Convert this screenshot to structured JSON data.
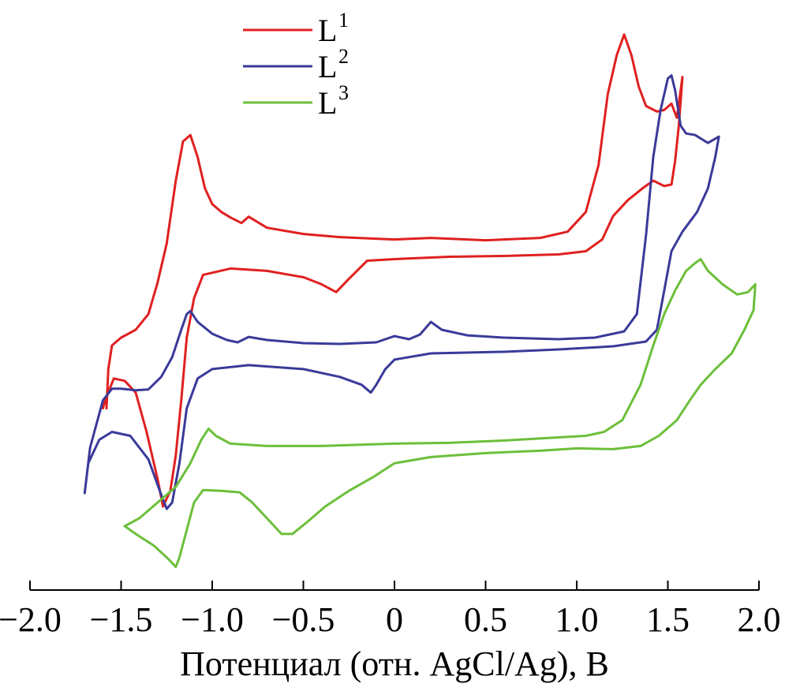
{
  "chart_data": {
    "type": "line",
    "title": "",
    "xlabel": "Потенциал (отн. AgCl/Ag), В",
    "ylabel": "",
    "xlim": [
      -2.0,
      2.0
    ],
    "x_ticks": [
      -2.0,
      -1.5,
      -1.0,
      -0.5,
      0,
      0.5,
      1.0,
      1.5,
      2.0
    ],
    "x_tick_labels": [
      "−2.0",
      "−1.5",
      "−1.0",
      "−0.5",
      "0",
      "0.5",
      "1.0",
      "1.5",
      "2.0"
    ],
    "y_axis_visible": false,
    "ylim": [
      0,
      880
    ],
    "grid": false,
    "legend_position": "top-left",
    "series": [
      {
        "name": "L",
        "sup": "1",
        "color": "#e02020",
        "points": [
          [
            -1.58,
            520
          ],
          [
            -1.57,
            470
          ],
          [
            -1.55,
            440
          ],
          [
            -1.5,
            430
          ],
          [
            -1.42,
            420
          ],
          [
            -1.35,
            400
          ],
          [
            -1.3,
            360
          ],
          [
            -1.25,
            310
          ],
          [
            -1.2,
            230
          ],
          [
            -1.16,
            180
          ],
          [
            -1.12,
            172
          ],
          [
            -1.08,
            200
          ],
          [
            -1.04,
            240
          ],
          [
            -1.0,
            260
          ],
          [
            -0.95,
            270
          ],
          [
            -0.9,
            277
          ],
          [
            -0.84,
            284
          ],
          [
            -0.8,
            276
          ],
          [
            -0.7,
            290
          ],
          [
            -0.5,
            298
          ],
          [
            -0.3,
            302
          ],
          [
            0.0,
            305
          ],
          [
            0.2,
            303
          ],
          [
            0.5,
            306
          ],
          [
            0.8,
            303
          ],
          [
            0.95,
            295
          ],
          [
            1.05,
            270
          ],
          [
            1.12,
            210
          ],
          [
            1.17,
            120
          ],
          [
            1.22,
            70
          ],
          [
            1.26,
            44
          ],
          [
            1.3,
            70
          ],
          [
            1.34,
            110
          ],
          [
            1.38,
            135
          ],
          [
            1.44,
            142
          ],
          [
            1.48,
            140
          ],
          [
            1.52,
            132
          ],
          [
            1.55,
            150
          ],
          [
            1.58,
            98
          ],
          [
            1.56,
            160
          ],
          [
            1.54,
            205
          ],
          [
            1.52,
            235
          ],
          [
            1.48,
            237
          ],
          [
            1.42,
            230
          ],
          [
            1.36,
            240
          ],
          [
            1.28,
            255
          ],
          [
            1.2,
            275
          ],
          [
            1.14,
            305
          ],
          [
            1.05,
            320
          ],
          [
            0.9,
            324
          ],
          [
            0.6,
            326
          ],
          [
            0.3,
            327
          ],
          [
            0.0,
            330
          ],
          [
            -0.15,
            332
          ],
          [
            -0.25,
            355
          ],
          [
            -0.32,
            372
          ],
          [
            -0.4,
            362
          ],
          [
            -0.5,
            353
          ],
          [
            -0.7,
            345
          ],
          [
            -0.9,
            342
          ],
          [
            -1.05,
            350
          ],
          [
            -1.1,
            380
          ],
          [
            -1.14,
            430
          ],
          [
            -1.17,
            510
          ],
          [
            -1.2,
            580
          ],
          [
            -1.23,
            625
          ],
          [
            -1.27,
            645
          ],
          [
            -1.3,
            610
          ],
          [
            -1.36,
            550
          ],
          [
            -1.42,
            500
          ],
          [
            -1.48,
            485
          ],
          [
            -1.54,
            482
          ],
          [
            -1.58,
            505
          ],
          [
            -1.6,
            520
          ]
        ]
      },
      {
        "name": "L",
        "sup": "2",
        "color": "#3a3a9a",
        "points": [
          [
            -1.7,
            628
          ],
          [
            -1.67,
            570
          ],
          [
            -1.6,
            510
          ],
          [
            -1.55,
            495
          ],
          [
            -1.5,
            495
          ],
          [
            -1.42,
            497
          ],
          [
            -1.35,
            496
          ],
          [
            -1.28,
            480
          ],
          [
            -1.22,
            455
          ],
          [
            -1.17,
            420
          ],
          [
            -1.14,
            400
          ],
          [
            -1.12,
            396
          ],
          [
            -1.08,
            410
          ],
          [
            -1.0,
            425
          ],
          [
            -0.92,
            433
          ],
          [
            -0.86,
            436
          ],
          [
            -0.8,
            429
          ],
          [
            -0.7,
            433
          ],
          [
            -0.5,
            437
          ],
          [
            -0.3,
            438
          ],
          [
            -0.1,
            436
          ],
          [
            0.0,
            428
          ],
          [
            0.08,
            432
          ],
          [
            0.14,
            426
          ],
          [
            0.2,
            410
          ],
          [
            0.26,
            420
          ],
          [
            0.4,
            427
          ],
          [
            0.6,
            430
          ],
          [
            0.9,
            432
          ],
          [
            1.1,
            430
          ],
          [
            1.26,
            422
          ],
          [
            1.33,
            400
          ],
          [
            1.38,
            300
          ],
          [
            1.42,
            200
          ],
          [
            1.46,
            140
          ],
          [
            1.5,
            100
          ],
          [
            1.52,
            96
          ],
          [
            1.54,
            115
          ],
          [
            1.57,
            160
          ],
          [
            1.6,
            170
          ],
          [
            1.65,
            172
          ],
          [
            1.72,
            182
          ],
          [
            1.78,
            174
          ],
          [
            1.76,
            200
          ],
          [
            1.72,
            240
          ],
          [
            1.66,
            270
          ],
          [
            1.58,
            295
          ],
          [
            1.52,
            320
          ],
          [
            1.48,
            370
          ],
          [
            1.44,
            420
          ],
          [
            1.38,
            435
          ],
          [
            1.2,
            441
          ],
          [
            0.9,
            445
          ],
          [
            0.6,
            448
          ],
          [
            0.2,
            450
          ],
          [
            0.0,
            458
          ],
          [
            -0.05,
            470
          ],
          [
            -0.1,
            490
          ],
          [
            -0.13,
            500
          ],
          [
            -0.18,
            490
          ],
          [
            -0.3,
            480
          ],
          [
            -0.5,
            470
          ],
          [
            -0.8,
            465
          ],
          [
            -1.0,
            470
          ],
          [
            -1.08,
            482
          ],
          [
            -1.14,
            520
          ],
          [
            -1.18,
            590
          ],
          [
            -1.22,
            640
          ],
          [
            -1.25,
            648
          ],
          [
            -1.28,
            630
          ],
          [
            -1.35,
            585
          ],
          [
            -1.45,
            555
          ],
          [
            -1.55,
            550
          ],
          [
            -1.62,
            560
          ],
          [
            -1.68,
            590
          ],
          [
            -1.7,
            628
          ]
        ]
      },
      {
        "name": "L",
        "sup": "3",
        "color": "#6cbf3a",
        "points": [
          [
            -1.48,
            670
          ],
          [
            -1.4,
            660
          ],
          [
            -1.3,
            640
          ],
          [
            -1.2,
            620
          ],
          [
            -1.12,
            590
          ],
          [
            -1.06,
            560
          ],
          [
            -1.02,
            546
          ],
          [
            -0.98,
            555
          ],
          [
            -0.9,
            565
          ],
          [
            -0.7,
            568
          ],
          [
            -0.4,
            568
          ],
          [
            0.0,
            565
          ],
          [
            0.3,
            564
          ],
          [
            0.6,
            561
          ],
          [
            0.9,
            557
          ],
          [
            1.05,
            555
          ],
          [
            1.15,
            550
          ],
          [
            1.25,
            535
          ],
          [
            1.35,
            490
          ],
          [
            1.42,
            440
          ],
          [
            1.48,
            400
          ],
          [
            1.54,
            370
          ],
          [
            1.6,
            345
          ],
          [
            1.65,
            335
          ],
          [
            1.68,
            330
          ],
          [
            1.72,
            345
          ],
          [
            1.8,
            362
          ],
          [
            1.88,
            375
          ],
          [
            1.94,
            372
          ],
          [
            1.98,
            362
          ],
          [
            1.97,
            395
          ],
          [
            1.92,
            420
          ],
          [
            1.85,
            450
          ],
          [
            1.76,
            470
          ],
          [
            1.68,
            490
          ],
          [
            1.62,
            510
          ],
          [
            1.55,
            535
          ],
          [
            1.45,
            555
          ],
          [
            1.35,
            568
          ],
          [
            1.2,
            572
          ],
          [
            1.0,
            571
          ],
          [
            0.8,
            574
          ],
          [
            0.5,
            577
          ],
          [
            0.2,
            582
          ],
          [
            0.0,
            590
          ],
          [
            -0.12,
            608
          ],
          [
            -0.25,
            625
          ],
          [
            -0.38,
            645
          ],
          [
            -0.48,
            665
          ],
          [
            -0.56,
            680
          ],
          [
            -0.62,
            680
          ],
          [
            -0.7,
            660
          ],
          [
            -0.78,
            640
          ],
          [
            -0.85,
            627
          ],
          [
            -0.95,
            625
          ],
          [
            -1.05,
            624
          ],
          [
            -1.1,
            640
          ],
          [
            -1.14,
            675
          ],
          [
            -1.18,
            710
          ],
          [
            -1.2,
            722
          ],
          [
            -1.24,
            712
          ],
          [
            -1.32,
            695
          ],
          [
            -1.42,
            680
          ],
          [
            -1.48,
            670
          ]
        ]
      }
    ]
  }
}
